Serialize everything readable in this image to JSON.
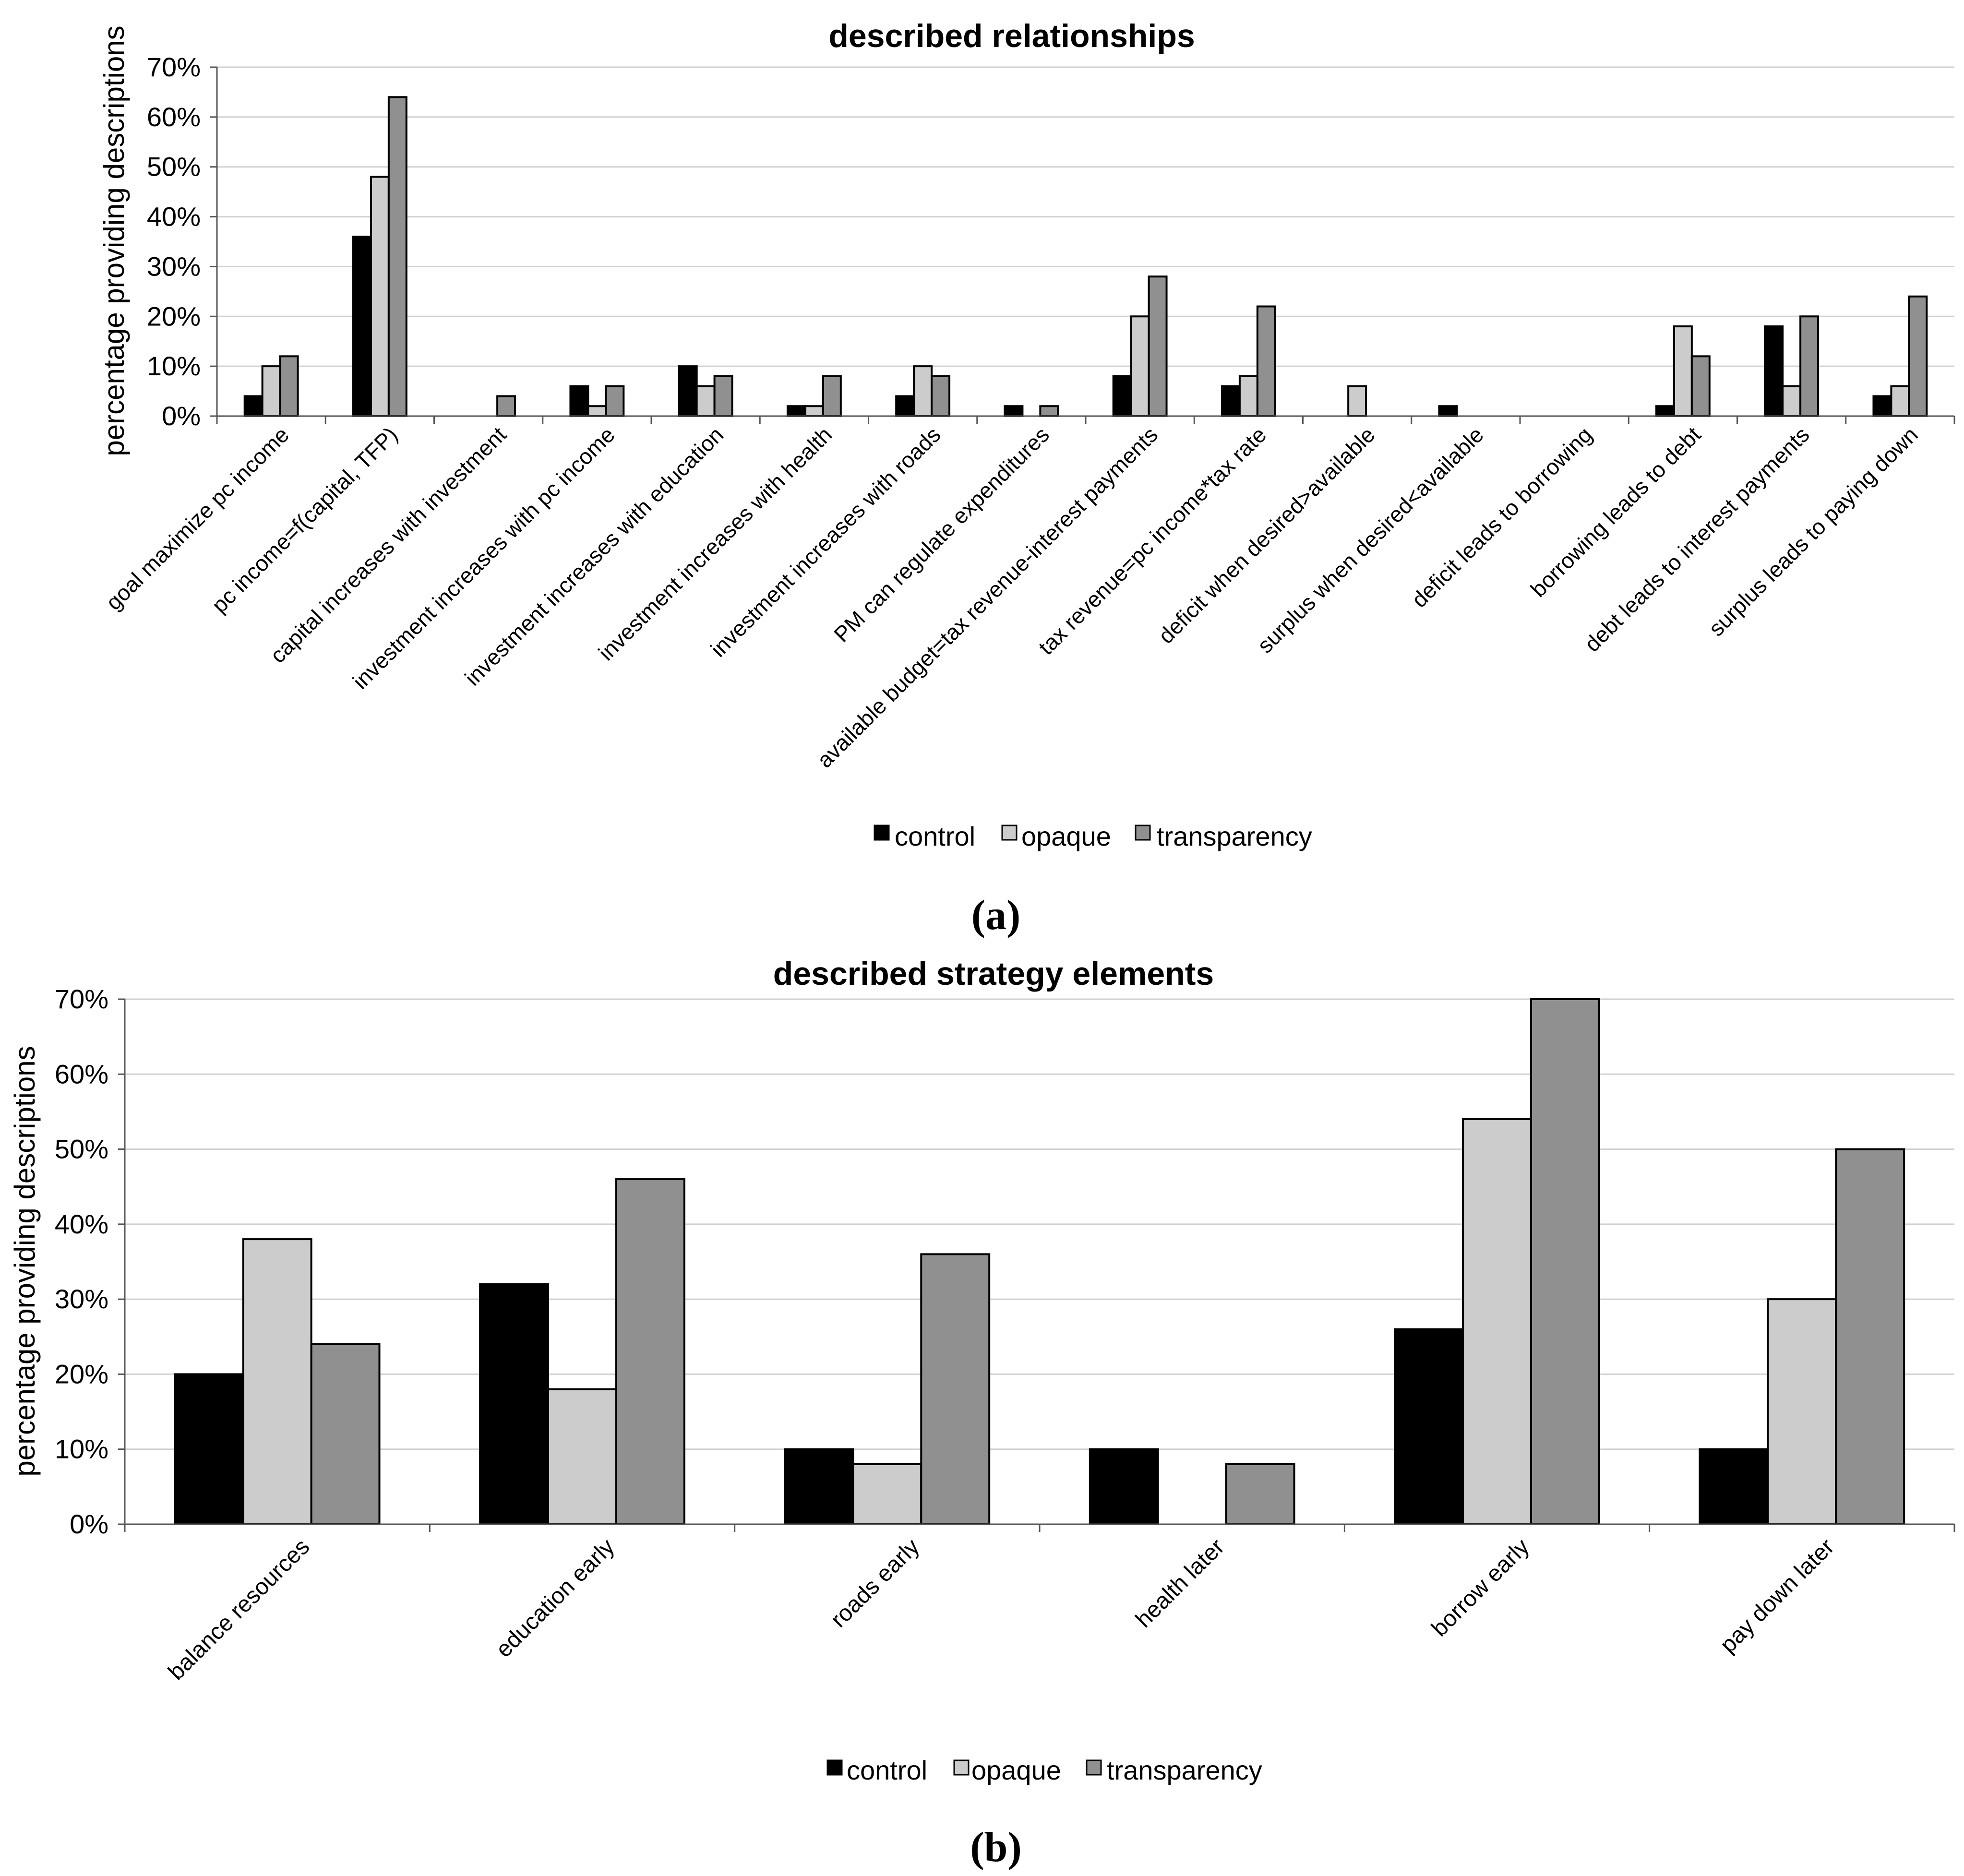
{
  "colors": {
    "control": "#000000",
    "opaque": "#cccccc",
    "transparency": "#909090",
    "grid": "#d0d0d0",
    "axis": "#555555"
  },
  "chart_data": [
    {
      "type": "bar",
      "panel": "(a)",
      "title": "described relationships",
      "xlabel": "",
      "ylabel": "percentage providing descriptions",
      "ylim": [
        0,
        70
      ],
      "yticks": [
        "0%",
        "10%",
        "20%",
        "30%",
        "40%",
        "50%",
        "60%",
        "70%"
      ],
      "grid": true,
      "legend_position": "bottom-center",
      "categories": [
        "goal maximize pc income",
        "pc income=f(capital, TFP)",
        "capital increases with investment",
        "investment increases with pc income",
        "investment increases with education",
        "investment increases with health",
        "investment increases with roads",
        "PM can regulate expenditures",
        "available budget=tax revenue-interest payments",
        "tax revenue=pc income*tax rate",
        "deficit when desired>available",
        "surplus when desired<available",
        "deficit leads to borrowing",
        "borrowing leads to debt",
        "debt leads to interest payments",
        "surplus leads to paying down"
      ],
      "series": [
        {
          "name": "control",
          "color_key": "control",
          "values": [
            4,
            36,
            0,
            6,
            10,
            2,
            4,
            2,
            8,
            6,
            0,
            2,
            0,
            2,
            18,
            4
          ]
        },
        {
          "name": "opaque",
          "color_key": "opaque",
          "values": [
            10,
            48,
            0,
            2,
            6,
            2,
            10,
            0,
            20,
            8,
            6,
            0,
            0,
            18,
            6,
            6
          ]
        },
        {
          "name": "transparency",
          "color_key": "transparency",
          "values": [
            12,
            64,
            4,
            6,
            8,
            8,
            8,
            2,
            28,
            22,
            0,
            0,
            0,
            12,
            20,
            24
          ]
        }
      ]
    },
    {
      "type": "bar",
      "panel": "(b)",
      "title": "described strategy elements",
      "xlabel": "",
      "ylabel": "percentage providing descriptions",
      "ylim": [
        0,
        70
      ],
      "yticks": [
        "0%",
        "10%",
        "20%",
        "30%",
        "40%",
        "50%",
        "60%",
        "70%"
      ],
      "grid": true,
      "legend_position": "bottom-center",
      "categories": [
        "balance resources",
        "education early",
        "roads early",
        "health later",
        "borrow early",
        "pay down later"
      ],
      "series": [
        {
          "name": "control",
          "color_key": "control",
          "values": [
            20,
            32,
            10,
            10,
            26,
            10
          ]
        },
        {
          "name": "opaque",
          "color_key": "opaque",
          "values": [
            38,
            18,
            8,
            0,
            54,
            30
          ]
        },
        {
          "name": "transparency",
          "color_key": "transparency",
          "values": [
            24,
            46,
            36,
            8,
            70,
            50
          ]
        }
      ]
    }
  ]
}
